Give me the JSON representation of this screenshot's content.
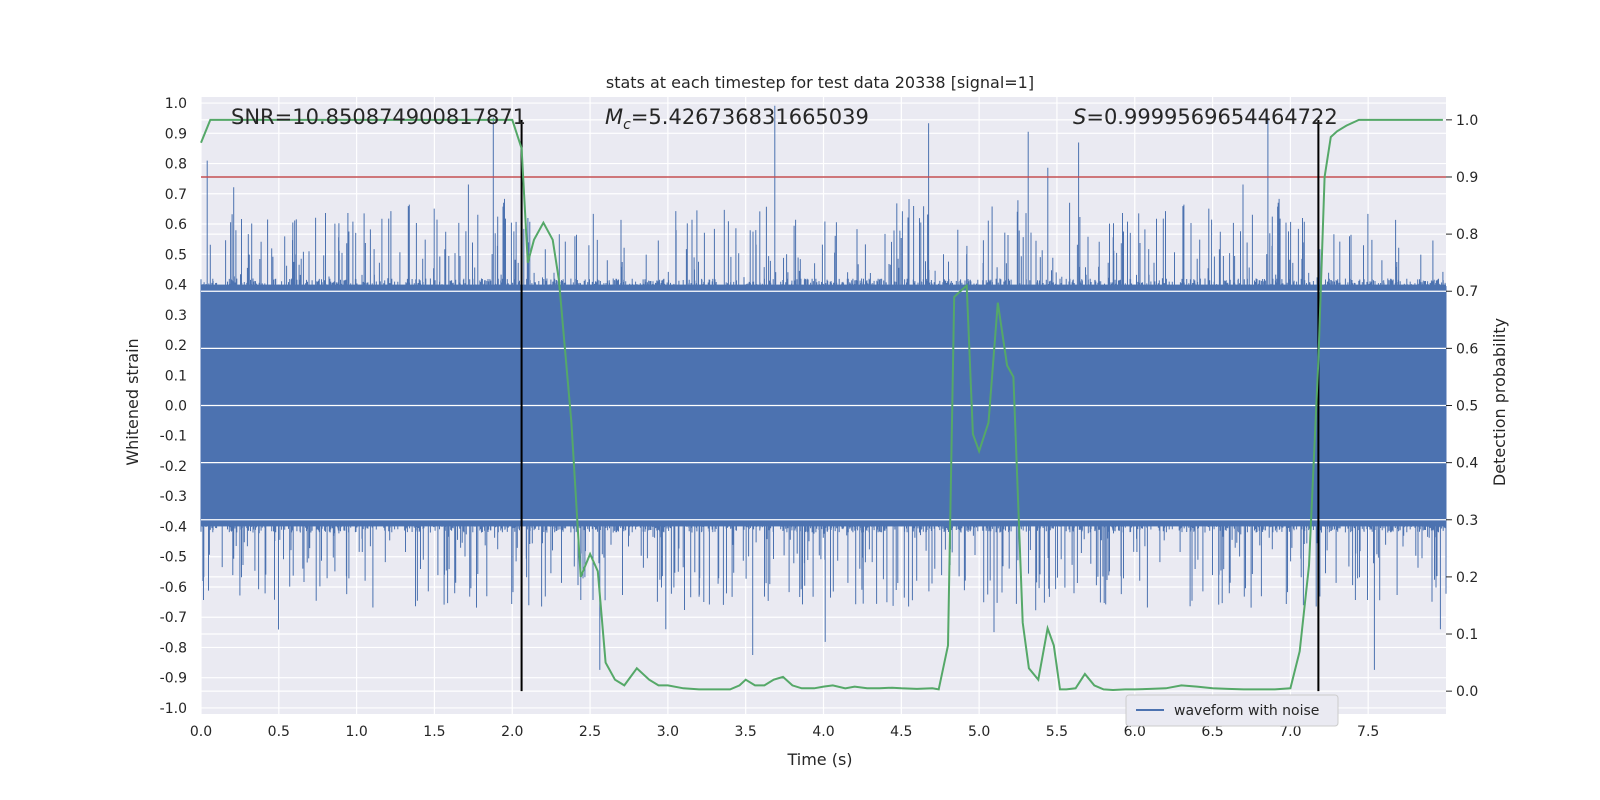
{
  "chart_data": {
    "type": "line",
    "title": "stats at each timestep for test data 20338 [signal=1]",
    "xlabel": "Time (s)",
    "ylabel": "Whitened strain",
    "y2label": "Detection probability",
    "xlim": [
      0.0,
      8.0
    ],
    "ylim": [
      -1.02,
      1.02
    ],
    "y2lim": [
      -0.04,
      1.04
    ],
    "xticks": [
      "0.0",
      "0.5",
      "1.0",
      "1.5",
      "2.0",
      "2.5",
      "3.0",
      "3.5",
      "4.0",
      "4.5",
      "5.0",
      "5.5",
      "6.0",
      "6.5",
      "7.0",
      "7.5"
    ],
    "yticks": [
      "1.0",
      "0.9",
      "0.8",
      "0.7",
      "0.6",
      "0.5",
      "0.4",
      "0.3",
      "0.2",
      "0.1",
      "0.0",
      "-0.1",
      "-0.2",
      "-0.3",
      "-0.4",
      "-0.5",
      "-0.6",
      "-0.7",
      "-0.8",
      "-0.9",
      "-1.0"
    ],
    "y2ticks": [
      "1.0",
      "0.9",
      "0.8",
      "0.7",
      "0.6",
      "0.5",
      "0.4",
      "0.3",
      "0.2",
      "0.1",
      "0.0"
    ],
    "grid": true,
    "legend": {
      "position": "bottom-right",
      "entries": [
        "waveform with noise"
      ]
    },
    "annotations": {
      "snr": "SNR=10.850874900817871",
      "mc_symbol": "M",
      "mc_sub": "c",
      "mc_value": "=5.426736831665039",
      "s_symbol": "S",
      "s_value": "=0.9999569654464722"
    },
    "threshold": {
      "axis": "y2",
      "value": 0.9,
      "color": "#c44e52"
    },
    "boundaries": {
      "x": [
        2.06,
        7.18
      ],
      "color": "#000000"
    },
    "colors": {
      "waveform": "#4c72b0",
      "probability": "#55a868",
      "background": "#eaeaf2",
      "grid": "#ffffff"
    },
    "series": [
      {
        "name": "waveform with noise",
        "axis": "y",
        "kind": "noise_band",
        "core_amplitude": 0.42,
        "typical_peak": 0.6,
        "max_peak": 1.0,
        "min_peak": -0.92
      },
      {
        "axis": "y2",
        "kind": "line",
        "x": [
          0.0,
          0.06,
          0.12,
          0.5,
          1.0,
          1.5,
          1.9,
          2.0,
          2.06,
          2.1,
          2.14,
          2.2,
          2.26,
          2.3,
          2.38,
          2.44,
          2.5,
          2.55,
          2.6,
          2.66,
          2.72,
          2.8,
          2.88,
          2.94,
          3.0,
          3.1,
          3.2,
          3.3,
          3.4,
          3.46,
          3.5,
          3.56,
          3.62,
          3.68,
          3.74,
          3.8,
          3.86,
          3.94,
          4.0,
          4.06,
          4.14,
          4.2,
          4.28,
          4.36,
          4.44,
          4.5,
          4.6,
          4.7,
          4.74,
          4.8,
          4.84,
          4.88,
          4.92,
          4.96,
          5.0,
          5.06,
          5.12,
          5.18,
          5.22,
          5.28,
          5.32,
          5.38,
          5.44,
          5.48,
          5.52,
          5.56,
          5.62,
          5.68,
          5.74,
          5.8,
          5.86,
          5.94,
          6.0,
          6.1,
          6.2,
          6.3,
          6.4,
          6.5,
          6.6,
          6.7,
          6.8,
          6.9,
          7.0,
          7.06,
          7.12,
          7.18,
          7.22,
          7.26,
          7.3,
          7.36,
          7.44,
          7.5,
          7.6,
          7.7,
          7.8,
          7.9,
          7.98
        ],
        "y": [
          0.96,
          1.0,
          1.0,
          1.0,
          1.0,
          1.0,
          1.0,
          1.0,
          0.95,
          0.75,
          0.79,
          0.82,
          0.79,
          0.72,
          0.47,
          0.2,
          0.24,
          0.21,
          0.05,
          0.02,
          0.01,
          0.04,
          0.02,
          0.01,
          0.01,
          0.005,
          0.003,
          0.003,
          0.003,
          0.01,
          0.02,
          0.01,
          0.01,
          0.02,
          0.025,
          0.01,
          0.005,
          0.005,
          0.008,
          0.01,
          0.005,
          0.008,
          0.005,
          0.005,
          0.006,
          0.005,
          0.004,
          0.005,
          0.003,
          0.08,
          0.69,
          0.7,
          0.71,
          0.45,
          0.42,
          0.47,
          0.68,
          0.57,
          0.55,
          0.12,
          0.04,
          0.02,
          0.11,
          0.08,
          0.003,
          0.003,
          0.005,
          0.03,
          0.01,
          0.003,
          0.002,
          0.003,
          0.003,
          0.004,
          0.005,
          0.01,
          0.008,
          0.005,
          0.004,
          0.003,
          0.003,
          0.003,
          0.005,
          0.07,
          0.22,
          0.58,
          0.9,
          0.97,
          0.98,
          0.99,
          1.0,
          1.0,
          1.0,
          1.0,
          1.0,
          1.0,
          1.0
        ]
      }
    ]
  }
}
